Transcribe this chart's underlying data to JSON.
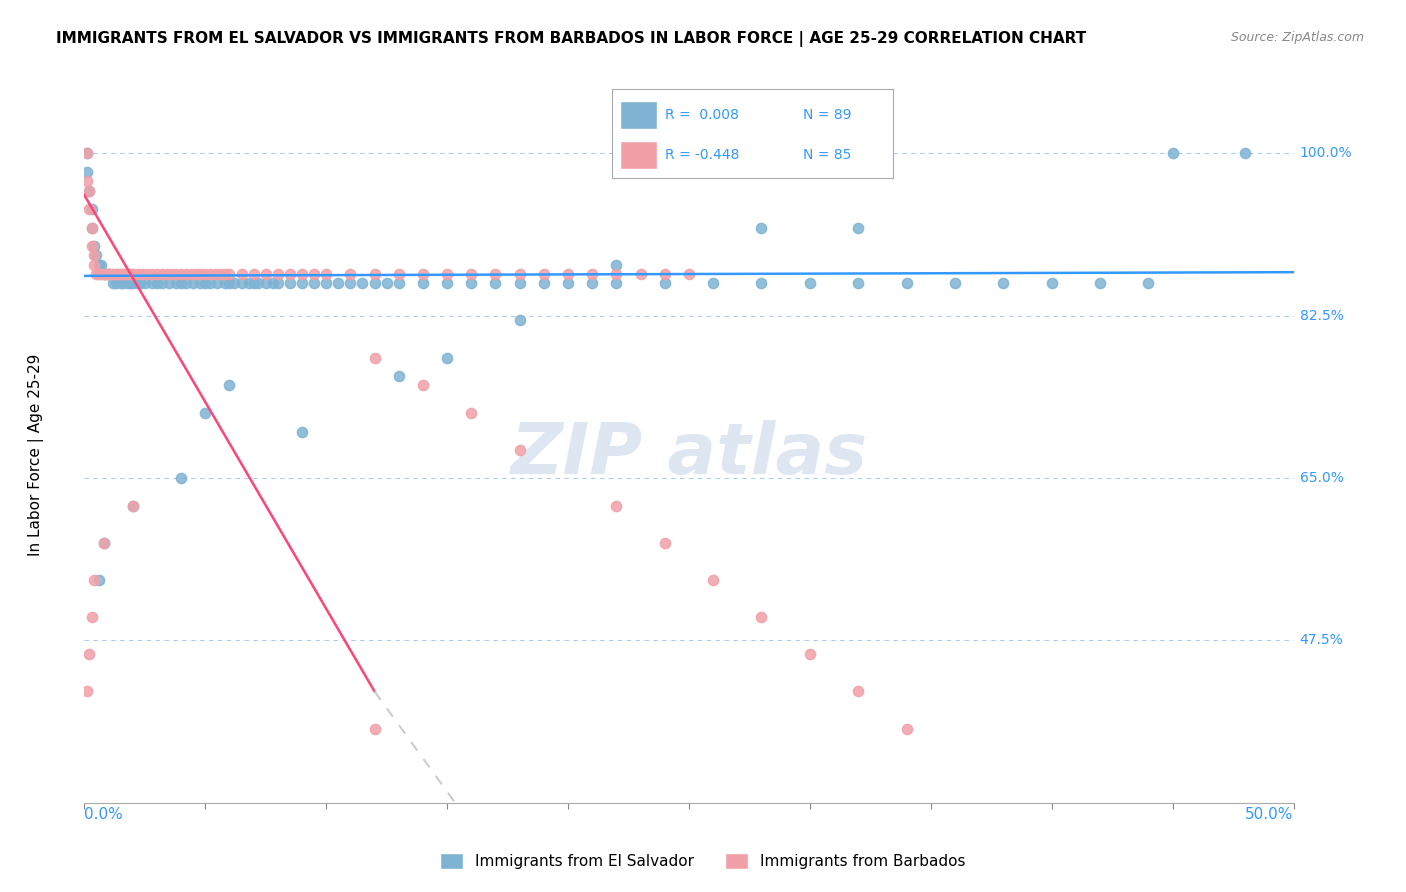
{
  "title": "IMMIGRANTS FROM EL SALVADOR VS IMMIGRANTS FROM BARBADOS IN LABOR FORCE | AGE 25-29 CORRELATION CHART",
  "source": "Source: ZipAtlas.com",
  "ylabel": "In Labor Force | Age 25-29",
  "legend_blue_r": "R =  0.008",
  "legend_blue_n": "N = 89",
  "legend_pink_r": "R = -0.448",
  "legend_pink_n": "N = 85",
  "blue_color": "#7FB3D3",
  "pink_color": "#F1A0A8",
  "blue_line_color": "#3399FF",
  "pink_line_color": "#FF4477",
  "dash_color": "#CCCCCC",
  "grid_color": "#AACCEE",
  "watermark_color": "#C8D8E8",
  "blue_scatter_x": [
    0.001,
    0.001,
    0.002,
    0.003,
    0.003,
    0.004,
    0.005,
    0.006,
    0.007,
    0.008,
    0.009,
    0.01,
    0.012,
    0.013,
    0.015,
    0.016,
    0.018,
    0.019,
    0.02,
    0.022,
    0.023,
    0.025,
    0.028,
    0.03,
    0.032,
    0.035,
    0.038,
    0.04,
    0.042,
    0.045,
    0.048,
    0.05,
    0.052,
    0.055,
    0.058,
    0.06,
    0.062,
    0.065,
    0.068,
    0.07,
    0.072,
    0.075,
    0.078,
    0.08,
    0.085,
    0.09,
    0.095,
    0.1,
    0.105,
    0.11,
    0.115,
    0.12,
    0.125,
    0.13,
    0.14,
    0.15,
    0.16,
    0.17,
    0.18,
    0.19,
    0.2,
    0.21,
    0.22,
    0.24,
    0.26,
    0.28,
    0.3,
    0.32,
    0.34,
    0.36,
    0.38,
    0.4,
    0.42,
    0.44,
    0.28,
    0.15,
    0.06,
    0.05,
    0.45,
    0.32,
    0.22,
    0.18,
    0.13,
    0.09,
    0.04,
    0.02,
    0.008,
    0.006,
    0.48
  ],
  "blue_scatter_y": [
    1.0,
    0.98,
    0.96,
    0.94,
    0.92,
    0.9,
    0.89,
    0.88,
    0.88,
    0.87,
    0.87,
    0.87,
    0.86,
    0.86,
    0.86,
    0.86,
    0.86,
    0.86,
    0.86,
    0.86,
    0.86,
    0.86,
    0.86,
    0.86,
    0.86,
    0.86,
    0.86,
    0.86,
    0.86,
    0.86,
    0.86,
    0.86,
    0.86,
    0.86,
    0.86,
    0.86,
    0.86,
    0.86,
    0.86,
    0.86,
    0.86,
    0.86,
    0.86,
    0.86,
    0.86,
    0.86,
    0.86,
    0.86,
    0.86,
    0.86,
    0.86,
    0.86,
    0.86,
    0.86,
    0.86,
    0.86,
    0.86,
    0.86,
    0.86,
    0.86,
    0.86,
    0.86,
    0.86,
    0.86,
    0.86,
    0.86,
    0.86,
    0.86,
    0.86,
    0.86,
    0.86,
    0.86,
    0.86,
    0.86,
    0.92,
    0.78,
    0.75,
    0.72,
    1.0,
    0.92,
    0.88,
    0.82,
    0.76,
    0.7,
    0.65,
    0.62,
    0.58,
    0.54,
    1.0
  ],
  "pink_scatter_x": [
    0.001,
    0.001,
    0.002,
    0.002,
    0.003,
    0.003,
    0.004,
    0.004,
    0.005,
    0.006,
    0.007,
    0.008,
    0.009,
    0.01,
    0.011,
    0.012,
    0.013,
    0.014,
    0.015,
    0.016,
    0.017,
    0.018,
    0.019,
    0.02,
    0.022,
    0.024,
    0.026,
    0.028,
    0.03,
    0.032,
    0.034,
    0.036,
    0.038,
    0.04,
    0.042,
    0.044,
    0.046,
    0.048,
    0.05,
    0.052,
    0.054,
    0.056,
    0.058,
    0.06,
    0.065,
    0.07,
    0.075,
    0.08,
    0.085,
    0.09,
    0.095,
    0.1,
    0.11,
    0.12,
    0.13,
    0.14,
    0.15,
    0.16,
    0.17,
    0.18,
    0.19,
    0.2,
    0.21,
    0.22,
    0.23,
    0.24,
    0.25,
    0.12,
    0.14,
    0.16,
    0.18,
    0.22,
    0.24,
    0.26,
    0.28,
    0.3,
    0.32,
    0.34,
    0.02,
    0.008,
    0.004,
    0.003,
    0.002,
    0.001,
    0.12
  ],
  "pink_scatter_y": [
    1.0,
    0.97,
    0.96,
    0.94,
    0.92,
    0.9,
    0.89,
    0.88,
    0.87,
    0.87,
    0.87,
    0.87,
    0.87,
    0.87,
    0.87,
    0.87,
    0.87,
    0.87,
    0.87,
    0.87,
    0.87,
    0.87,
    0.87,
    0.87,
    0.87,
    0.87,
    0.87,
    0.87,
    0.87,
    0.87,
    0.87,
    0.87,
    0.87,
    0.87,
    0.87,
    0.87,
    0.87,
    0.87,
    0.87,
    0.87,
    0.87,
    0.87,
    0.87,
    0.87,
    0.87,
    0.87,
    0.87,
    0.87,
    0.87,
    0.87,
    0.87,
    0.87,
    0.87,
    0.87,
    0.87,
    0.87,
    0.87,
    0.87,
    0.87,
    0.87,
    0.87,
    0.87,
    0.87,
    0.87,
    0.87,
    0.87,
    0.87,
    0.78,
    0.75,
    0.72,
    0.68,
    0.62,
    0.58,
    0.54,
    0.5,
    0.46,
    0.42,
    0.38,
    0.62,
    0.58,
    0.54,
    0.5,
    0.46,
    0.42,
    0.38
  ],
  "xlim": [
    0.0,
    0.5
  ],
  "ylim": [
    0.3,
    1.05
  ],
  "ytick_vals": [
    1.0,
    0.825,
    0.65,
    0.475
  ],
  "ytick_labels": [
    "100.0%",
    "82.5%",
    "65.0%",
    "47.5%"
  ]
}
